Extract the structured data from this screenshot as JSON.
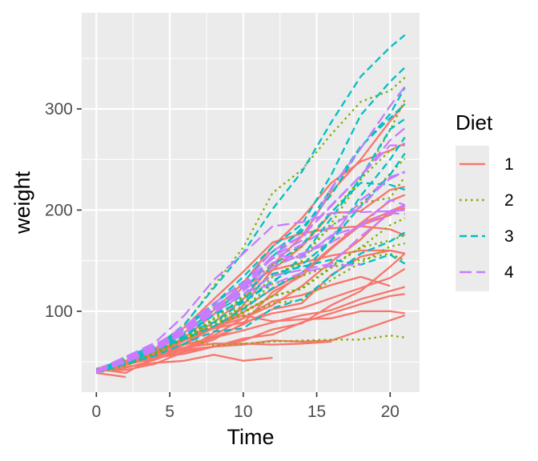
{
  "chart_data": {
    "type": "line",
    "xlabel": "Time",
    "ylabel": "weight",
    "xlim": [
      -1,
      22
    ],
    "ylim": [
      20,
      395
    ],
    "x_ticks": [
      0,
      5,
      10,
      15,
      20
    ],
    "y_ticks": [
      100,
      200,
      300
    ],
    "grid": true,
    "legend": {
      "title": "Diet",
      "placement": "right",
      "entries": [
        {
          "label": "1",
          "color": "#F8766D",
          "dash": "solid"
        },
        {
          "label": "2",
          "color": "#7CAE00",
          "dash": "dotted"
        },
        {
          "label": "3",
          "color": "#00BFC4",
          "dash": "dashed"
        },
        {
          "label": "4",
          "color": "#C77CFF",
          "dash": "longdash"
        }
      ]
    },
    "x": [
      0,
      2,
      4,
      6,
      8,
      10,
      12,
      14,
      16,
      18,
      20,
      21
    ],
    "series": [
      {
        "group": "1",
        "values": [
          42,
          51,
          59,
          64,
          76,
          93,
          106,
          125,
          149,
          171,
          199,
          205
        ]
      },
      {
        "group": "1",
        "values": [
          40,
          49,
          58,
          72,
          84,
          103,
          122,
          138,
          162,
          187,
          209,
          215
        ]
      },
      {
        "group": "1",
        "values": [
          43,
          39,
          55,
          67,
          84,
          99,
          115,
          138,
          163,
          187,
          198,
          202
        ]
      },
      {
        "group": "1",
        "values": [
          42,
          49,
          56,
          67,
          74,
          87,
          102,
          108,
          136,
          154,
          160,
          157
        ]
      },
      {
        "group": "1",
        "values": [
          41,
          42,
          48,
          60,
          79,
          106,
          141,
          164,
          197,
          199,
          220,
          223
        ]
      },
      {
        "group": "1",
        "values": [
          41,
          49,
          59,
          74,
          97,
          124,
          141,
          148,
          155,
          160,
          160,
          157
        ]
      },
      {
        "group": "1",
        "values": [
          41,
          49,
          57,
          71,
          89,
          112,
          146,
          174,
          218,
          250,
          288,
          305
        ]
      },
      {
        "group": "1",
        "values": [
          42,
          50,
          61,
          71,
          84,
          93,
          110,
          116,
          126,
          134,
          125,
          null
        ]
      },
      {
        "group": "1",
        "values": [
          42,
          51,
          59,
          68,
          85,
          96,
          90,
          92,
          93,
          100,
          100,
          98
        ]
      },
      {
        "group": "1",
        "values": [
          41,
          44,
          52,
          63,
          74,
          81,
          89,
          96,
          101,
          112,
          120,
          124
        ]
      },
      {
        "group": "1",
        "values": [
          43,
          51,
          63,
          84,
          112,
          139,
          168,
          177,
          182,
          184,
          181,
          175
        ]
      },
      {
        "group": "1",
        "values": [
          41,
          49,
          56,
          62,
          72,
          88,
          119,
          135,
          162,
          185,
          195,
          205
        ]
      },
      {
        "group": "1",
        "values": [
          41,
          48,
          53,
          60,
          65,
          67,
          71,
          70,
          71,
          81,
          91,
          96
        ]
      },
      {
        "group": "1",
        "values": [
          41,
          49,
          62,
          79,
          101,
          128,
          164,
          192,
          227,
          248,
          259,
          266
        ]
      },
      {
        "group": "1",
        "values": [
          41,
          49,
          56,
          64,
          68,
          68,
          67,
          68,
          70,
          null,
          null,
          null
        ]
      },
      {
        "group": "1",
        "values": [
          41,
          45,
          49,
          51,
          57,
          51,
          54,
          null,
          null,
          null,
          null,
          null
        ]
      },
      {
        "group": "1",
        "values": [
          42,
          51,
          61,
          72,
          83,
          89,
          98,
          103,
          113,
          123,
          133,
          142
        ]
      },
      {
        "group": "1",
        "values": [
          39,
          35,
          null,
          null,
          null,
          null,
          null,
          null,
          null,
          null,
          null,
          null
        ]
      },
      {
        "group": "1",
        "values": [
          43,
          48,
          55,
          62,
          65,
          71,
          82,
          88,
          106,
          120,
          144,
          157
        ]
      },
      {
        "group": "1",
        "values": [
          41,
          47,
          54,
          58,
          65,
          73,
          77,
          89,
          98,
          107,
          115,
          117
        ]
      },
      {
        "group": "2",
        "values": [
          40,
          50,
          62,
          86,
          125,
          163,
          217,
          240,
          275,
          307,
          318,
          331
        ]
      },
      {
        "group": "2",
        "values": [
          41,
          55,
          64,
          77,
          90,
          95,
          108,
          111,
          131,
          148,
          164,
          167
        ]
      },
      {
        "group": "2",
        "values": [
          43,
          52,
          61,
          73,
          90,
          103,
          127,
          135,
          145,
          163,
          170,
          175
        ]
      },
      {
        "group": "2",
        "values": [
          42,
          52,
          58,
          74,
          66,
          68,
          70,
          71,
          72,
          72,
          76,
          74
        ]
      },
      {
        "group": "2",
        "values": [
          40,
          49,
          62,
          78,
          102,
          124,
          146,
          164,
          197,
          231,
          259,
          265
        ]
      },
      {
        "group": "2",
        "values": [
          42,
          48,
          57,
          74,
          93,
          114,
          136,
          147,
          169,
          205,
          236,
          251
        ]
      },
      {
        "group": "2",
        "values": [
          39,
          46,
          58,
          73,
          87,
          100,
          115,
          123,
          144,
          163,
          185,
          192
        ]
      },
      {
        "group": "2",
        "values": [
          39,
          46,
          58,
          73,
          92,
          114,
          145,
          156,
          184,
          207,
          212,
          233
        ]
      },
      {
        "group": "2",
        "values": [
          39,
          48,
          59,
          74,
          87,
          106,
          134,
          150,
          187,
          230,
          279,
          309
        ]
      },
      {
        "group": "2",
        "values": [
          42,
          48,
          59,
          72,
          85,
          98,
          115,
          122,
          143,
          151,
          157,
          150
        ]
      },
      {
        "group": "3",
        "values": [
          42,
          53,
          62,
          73,
          85,
          102,
          123,
          138,
          170,
          204,
          235,
          256
        ]
      },
      {
        "group": "3",
        "values": [
          41,
          49,
          65,
          82,
          107,
          129,
          159,
          179,
          221,
          263,
          291,
          305
        ]
      },
      {
        "group": "3",
        "values": [
          39,
          50,
          63,
          77,
          96,
          111,
          137,
          144,
          151,
          146,
          156,
          147
        ]
      },
      {
        "group": "3",
        "values": [
          41,
          49,
          63,
          85,
          107,
          134,
          164,
          186,
          235,
          294,
          327,
          341
        ]
      },
      {
        "group": "3",
        "values": [
          41,
          53,
          64,
          87,
          123,
          158,
          201,
          238,
          287,
          332,
          361,
          373
        ]
      },
      {
        "group": "3",
        "values": [
          39,
          48,
          61,
          76,
          98,
          116,
          145,
          166,
          198,
          227,
          225,
          220
        ]
      },
      {
        "group": "3",
        "values": [
          41,
          48,
          56,
          68,
          80,
          83,
          103,
          112,
          135,
          157,
          169,
          178
        ]
      },
      {
        "group": "3",
        "values": [
          41,
          49,
          61,
          74,
          98,
          109,
          128,
          154,
          192,
          232,
          280,
          290
        ]
      },
      {
        "group": "3",
        "values": [
          42,
          50,
          61,
          78,
          89,
          109,
          130,
          146,
          170,
          214,
          250,
          272
        ]
      },
      {
        "group": "3",
        "values": [
          41,
          55,
          66,
          79,
          101,
          120,
          154,
          182,
          215,
          262,
          295,
          321
        ]
      },
      {
        "group": "4",
        "values": [
          42,
          51,
          66,
          85,
          103,
          124,
          155,
          153,
          175,
          184,
          199,
          204
        ]
      },
      {
        "group": "4",
        "values": [
          42,
          49,
          63,
          84,
          103,
          126,
          160,
          174,
          204,
          234,
          269,
          281
        ]
      },
      {
        "group": "4",
        "values": [
          42,
          55,
          69,
          96,
          131,
          157,
          184,
          188,
          197,
          198,
          199,
          200
        ]
      },
      {
        "group": "4",
        "values": [
          42,
          51,
          65,
          86,
          103,
          118,
          127,
          138,
          145,
          146,
          null,
          null
        ]
      },
      {
        "group": "4",
        "values": [
          41,
          50,
          61,
          78,
          98,
          117,
          135,
          141,
          147,
          174,
          197,
          196
        ]
      },
      {
        "group": "4",
        "values": [
          40,
          52,
          62,
          82,
          101,
          120,
          144,
          156,
          173,
          210,
          231,
          238
        ]
      },
      {
        "group": "4",
        "values": [
          41,
          53,
          66,
          79,
          100,
          123,
          148,
          157,
          168,
          185,
          210,
          205
        ]
      },
      {
        "group": "4",
        "values": [
          39,
          50,
          62,
          80,
          104,
          125,
          154,
          170,
          222,
          261,
          303,
          322
        ]
      },
      {
        "group": "4",
        "values": [
          40,
          53,
          64,
          85,
          108,
          128,
          152,
          166,
          184,
          203,
          233,
          237
        ]
      },
      {
        "group": "4",
        "values": [
          41,
          54,
          67,
          84,
          105,
          122,
          155,
          175,
          205,
          234,
          264,
          264
        ]
      }
    ]
  }
}
